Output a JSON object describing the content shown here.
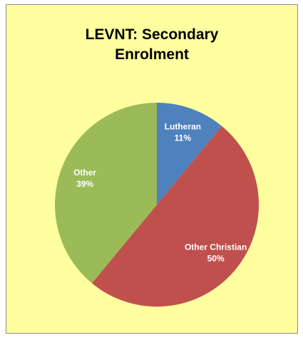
{
  "chart_data": {
    "type": "pie",
    "title": "LEVNT: Secondary Enrolment",
    "categories": [
      "Lutheran",
      "Other Christian",
      "Other"
    ],
    "values": [
      11,
      50,
      39
    ],
    "value_labels": [
      "11%",
      "50%",
      "39%"
    ],
    "colors": [
      "#4f81bd",
      "#c0504d",
      "#9bbb59"
    ]
  }
}
